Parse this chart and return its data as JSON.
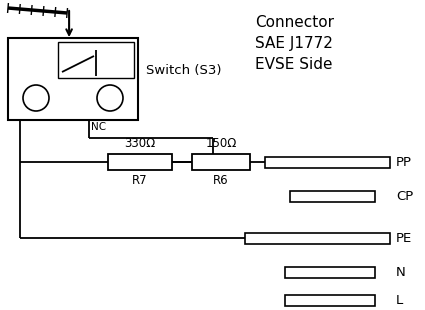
{
  "background_color": "#ffffff",
  "line_color": "#000000",
  "connector_text": "Connector\nSAE J1772\nEVSE Side",
  "switch_label": "Switch (S3)",
  "nc_label": "NC",
  "r7_label": "R7",
  "r6_label": "R6",
  "r7_val": "330Ω",
  "r6_val": "150Ω",
  "pins": [
    "PP",
    "CP",
    "PE",
    "N",
    "L"
  ]
}
